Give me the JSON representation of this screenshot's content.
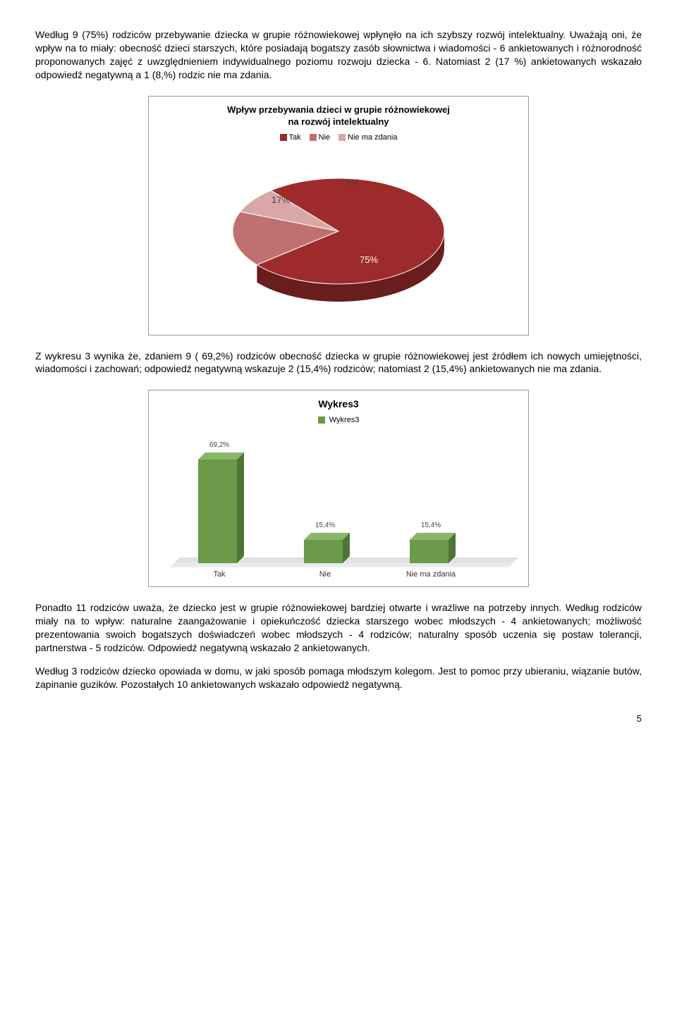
{
  "para1": "Według 9 (75%) rodziców przebywanie dziecka w grupie różnowiekowej wpłynęło na ich szybszy rozwój intelektualny. Uważają oni, że wpływ na to miały: obecność dzieci starszych, które posiadają bogatszy zasób słownictwa i wiadomości - 6 ankietowanych i różnorodność proponowanych zajęć z uwzględnieniem indywidualnego poziomu rozwoju dziecka - 6. Natomiast 2 (17 %) ankietowanych wskazało odpowiedź negatywną a 1 (8,%) rodzic nie ma zdania.",
  "chart1": {
    "type": "pie",
    "title_line1": "Wpływ przebywania dzieci w grupie różnowiekowej",
    "title_line2": "na rozwój intelektualny",
    "title_fontsize": 13,
    "legend_items": [
      {
        "label": "Tak",
        "color": "#9e2b2b"
      },
      {
        "label": "Nie",
        "color": "#c07070"
      },
      {
        "label": "Nie ma zdania",
        "color": "#d9a7a7"
      }
    ],
    "slices": [
      {
        "label": "75%",
        "value": 75,
        "color": "#9e2b2b",
        "color_side": "#6a1d1d"
      },
      {
        "label": "17%",
        "value": 17,
        "color": "#c07070",
        "color_side": "#8a4a4a"
      },
      {
        "label": "8%",
        "value": 8,
        "color": "#d9a7a7",
        "color_side": "#b08080"
      }
    ],
    "background_color": "#ffffff"
  },
  "para2": "Z wykresu 3 wynika że, zdaniem 9 ( 69,2%) rodziców obecność dziecka w grupie różnowiekowej jest źródłem ich nowych umiejętności, wiadomości i zachowań; odpowiedź negatywną wskazuje 2 (15,4%) rodziców; natomiast 2 (15,4%) ankietowanych nie ma zdania.",
  "chart2": {
    "type": "bar",
    "title": "Wykres3",
    "title_fontsize": 14,
    "legend_label": "Wykres3",
    "legend_color": "#6a9a4a",
    "categories": [
      "Tak",
      "Nie",
      "Nie ma zdania"
    ],
    "values": [
      69.2,
      15.4,
      15.4
    ],
    "value_labels": [
      "69,2%",
      "15,4%",
      "15,4%"
    ],
    "bar_color": "#6a9a4a",
    "bar_color_top": "#8ab66a",
    "bar_color_side": "#4f7535",
    "ylim": [
      0,
      80
    ],
    "background_color": "#ffffff",
    "label_fontsize": 11
  },
  "para3": "Ponadto 11 rodziców uważa, że dziecko jest w grupie różnowiekowej bardziej otwarte i wrażliwe na potrzeby innych. Według rodziców miały na to wpływ: naturalne zaangażowanie i opiekuńczość dziecka starszego wobec młodszych - 4 ankietowanych; możliwość prezentowania swoich bogatszych doświadczeń wobec młodszych - 4 rodziców; naturalny sposób uczenia się postaw tolerancji, partnerstwa - 5 rodziców. Odpowiedź negatywną wskazało 2 ankietowanych.",
  "para4": "Według 3 rodziców dziecko opowiada w domu, w jaki sposób pomaga młodszym kolegom. Jest to pomoc przy ubieraniu, wiązanie butów, zapinanie guzików. Pozostałych 10 ankietowanych wskazało odpowiedź negatywną.",
  "page_number": "5"
}
